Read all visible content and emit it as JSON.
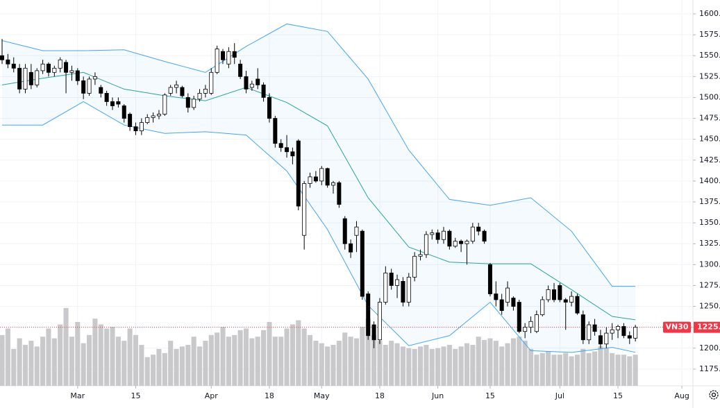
{
  "chart_data": {
    "type": "candlestick",
    "symbol": "VN30",
    "last_price": {
      "value": 1225,
      "label": "1225."
    },
    "candles": [
      [
        1550,
        1570,
        1540,
        1545
      ],
      [
        1545,
        1552,
        1535,
        1540
      ],
      [
        1540,
        1548,
        1530,
        1535
      ],
      [
        1535,
        1540,
        1505,
        1510
      ],
      [
        1510,
        1540,
        1505,
        1535
      ],
      [
        1530,
        1540,
        1510,
        1515
      ],
      [
        1515,
        1535,
        1512,
        1532
      ],
      [
        1532,
        1545,
        1528,
        1540
      ],
      [
        1540,
        1542,
        1525,
        1530
      ],
      [
        1530,
        1538,
        1525,
        1535
      ],
      [
        1535,
        1548,
        1530,
        1545
      ],
      [
        1542,
        1545,
        1505,
        1530
      ],
      [
        1530,
        1538,
        1520,
        1532
      ],
      [
        1532,
        1535,
        1515,
        1520
      ],
      [
        1520,
        1525,
        1498,
        1505
      ],
      [
        1505,
        1525,
        1502,
        1522
      ],
      [
        1522,
        1530,
        1515,
        1525
      ],
      [
        1512,
        1515,
        1500,
        1505
      ],
      [
        1505,
        1508,
        1490,
        1495
      ],
      [
        1495,
        1500,
        1485,
        1490
      ],
      [
        1495,
        1500,
        1488,
        1492
      ],
      [
        1490,
        1492,
        1470,
        1475
      ],
      [
        1480,
        1482,
        1460,
        1465
      ],
      [
        1465,
        1470,
        1455,
        1460
      ],
      [
        1460,
        1475,
        1455,
        1470
      ],
      [
        1470,
        1480,
        1468,
        1476
      ],
      [
        1476,
        1482,
        1470,
        1478
      ],
      [
        1478,
        1485,
        1474,
        1480
      ],
      [
        1480,
        1505,
        1478,
        1503
      ],
      [
        1505,
        1515,
        1502,
        1512
      ],
      [
        1512,
        1520,
        1505,
        1515
      ],
      [
        1512,
        1514,
        1500,
        1502
      ],
      [
        1500,
        1505,
        1482,
        1488
      ],
      [
        1488,
        1502,
        1485,
        1498
      ],
      [
        1498,
        1510,
        1495,
        1505
      ],
      [
        1505,
        1515,
        1500,
        1510
      ],
      [
        1505,
        1535,
        1503,
        1530
      ],
      [
        1530,
        1562,
        1528,
        1558
      ],
      [
        1555,
        1558,
        1540,
        1545
      ],
      [
        1540,
        1560,
        1535,
        1555
      ],
      [
        1555,
        1565,
        1540,
        1548
      ],
      [
        1540,
        1545,
        1522,
        1525
      ],
      [
        1525,
        1532,
        1505,
        1510
      ],
      [
        1512,
        1520,
        1508,
        1516
      ],
      [
        1522,
        1535,
        1510,
        1515
      ],
      [
        1515,
        1518,
        1495,
        1500
      ],
      [
        1500,
        1505,
        1470,
        1475
      ],
      [
        1475,
        1478,
        1440,
        1445
      ],
      [
        1445,
        1450,
        1435,
        1440
      ],
      [
        1440,
        1455,
        1428,
        1435
      ],
      [
        1435,
        1440,
        1420,
        1430
      ],
      [
        1448,
        1450,
        1365,
        1370
      ],
      [
        1335,
        1400,
        1318,
        1397
      ],
      [
        1397,
        1410,
        1392,
        1405
      ],
      [
        1405,
        1412,
        1398,
        1400
      ],
      [
        1400,
        1418,
        1395,
        1415
      ],
      [
        1415,
        1416,
        1392,
        1395
      ],
      [
        1395,
        1400,
        1385,
        1398
      ],
      [
        1398,
        1400,
        1368,
        1372
      ],
      [
        1355,
        1358,
        1318,
        1325
      ],
      [
        1325,
        1330,
        1308,
        1315
      ],
      [
        1335,
        1352,
        1315,
        1345
      ],
      [
        1340,
        1342,
        1258,
        1262
      ],
      [
        1265,
        1268,
        1210,
        1215
      ],
      [
        1228,
        1232,
        1200,
        1210
      ],
      [
        1210,
        1260,
        1205,
        1255
      ],
      [
        1255,
        1298,
        1252,
        1290
      ],
      [
        1290,
        1295,
        1270,
        1275
      ],
      [
        1275,
        1288,
        1260,
        1282
      ],
      [
        1280,
        1285,
        1250,
        1255
      ],
      [
        1255,
        1290,
        1250,
        1285
      ],
      [
        1285,
        1315,
        1280,
        1310
      ],
      [
        1310,
        1318,
        1305,
        1312
      ],
      [
        1312,
        1340,
        1308,
        1336
      ],
      [
        1336,
        1342,
        1330,
        1338
      ],
      [
        1338,
        1342,
        1325,
        1330
      ],
      [
        1330,
        1345,
        1325,
        1340
      ],
      [
        1340,
        1342,
        1318,
        1322
      ],
      [
        1322,
        1332,
        1320,
        1328
      ],
      [
        1328,
        1330,
        1315,
        1325
      ],
      [
        1325,
        1330,
        1300,
        1328
      ],
      [
        1328,
        1350,
        1325,
        1345
      ],
      [
        1345,
        1350,
        1335,
        1340
      ],
      [
        1340,
        1342,
        1325,
        1328
      ],
      [
        1300,
        1302,
        1262,
        1265
      ],
      [
        1265,
        1280,
        1250,
        1258
      ],
      [
        1258,
        1265,
        1240,
        1245
      ],
      [
        1255,
        1280,
        1250,
        1272
      ],
      [
        1260,
        1262,
        1245,
        1250
      ],
      [
        1255,
        1258,
        1218,
        1220
      ],
      [
        1220,
        1230,
        1212,
        1225
      ],
      [
        1225,
        1238,
        1218,
        1232
      ],
      [
        1220,
        1245,
        1218,
        1240
      ],
      [
        1240,
        1262,
        1238,
        1258
      ],
      [
        1258,
        1275,
        1255,
        1270
      ],
      [
        1270,
        1278,
        1255,
        1258
      ],
      [
        1275,
        1278,
        1255,
        1258
      ],
      [
        1258,
        1260,
        1222,
        1255
      ],
      [
        1255,
        1268,
        1250,
        1262
      ],
      [
        1262,
        1265,
        1240,
        1242
      ],
      [
        1240,
        1245,
        1205,
        1210
      ],
      [
        1210,
        1232,
        1205,
        1228
      ],
      [
        1228,
        1235,
        1215,
        1220
      ],
      [
        1215,
        1222,
        1200,
        1205
      ],
      [
        1205,
        1225,
        1200,
        1218
      ],
      [
        1218,
        1230,
        1210,
        1222
      ],
      [
        1222,
        1228,
        1212,
        1226
      ],
      [
        1226,
        1230,
        1212,
        1215
      ],
      [
        1215,
        1220,
        1205,
        1212
      ],
      [
        1212,
        1228,
        1208,
        1225
      ]
    ],
    "volume": [
      62,
      70,
      45,
      58,
      50,
      55,
      48,
      60,
      70,
      58,
      75,
      95,
      60,
      78,
      52,
      62,
      82,
      75,
      70,
      72,
      60,
      55,
      70,
      62,
      50,
      35,
      38,
      45,
      40,
      55,
      45,
      48,
      50,
      60,
      48,
      55,
      62,
      65,
      72,
      60,
      62,
      68,
      70,
      58,
      60,
      68,
      78,
      60,
      60,
      70,
      75,
      80,
      70,
      62,
      55,
      52,
      48,
      50,
      55,
      65,
      60,
      58,
      72,
      82,
      62,
      55,
      50,
      55,
      52,
      48,
      46,
      45,
      48,
      50,
      45,
      46,
      48,
      50,
      45,
      48,
      52,
      50,
      60,
      56,
      58,
      55,
      48,
      52,
      58,
      60,
      55,
      45,
      38,
      40,
      42,
      38,
      38,
      40,
      36,
      38,
      45,
      40,
      42,
      48,
      46,
      40,
      38,
      38,
      36,
      38
    ],
    "volume_ylim": [
      0,
      100
    ],
    "bands": [
      {
        "color": "#42a5f5",
        "x": [
          0,
          7,
          14,
          21,
          28,
          35,
          42,
          49,
          56,
          63,
          70,
          77,
          84,
          91,
          98,
          105,
          109
        ],
        "values": [
          1568,
          1556,
          1556,
          1557,
          1543,
          1530,
          1561,
          1588,
          1579,
          1522,
          1437,
          1378,
          1371,
          1380,
          1340,
          1274,
          1274
        ]
      },
      {
        "color": "#26a69a",
        "x": [
          0,
          7,
          14,
          21,
          28,
          35,
          42,
          49,
          56,
          63,
          70,
          77,
          84,
          91,
          98,
          105,
          109
        ],
        "values": [
          1515,
          1523,
          1530,
          1510,
          1502,
          1496,
          1512,
          1494,
          1466,
          1380,
          1321,
          1303,
          1301,
          1301,
          1270,
          1238,
          1234
        ]
      },
      {
        "color": "#42a5f5",
        "x": [
          0,
          7,
          14,
          21,
          28,
          35,
          42,
          49,
          56,
          63,
          70,
          77,
          84,
          91,
          98,
          105,
          109
        ],
        "values": [
          1467,
          1467,
          1495,
          1467,
          1457,
          1459,
          1455,
          1412,
          1342,
          1251,
          1203,
          1215,
          1255,
          1197,
          1195,
          1201,
          1195
        ]
      }
    ],
    "xlim": [
      -0.36,
      118.9
    ],
    "xticks": [
      {
        "value": 13,
        "label": "Mar"
      },
      {
        "value": 23,
        "label": "15"
      },
      {
        "value": 36,
        "label": "Apr"
      },
      {
        "value": 46,
        "label": "18"
      },
      {
        "value": 55,
        "label": "May"
      },
      {
        "value": 65,
        "label": "18"
      },
      {
        "value": 75,
        "label": "Jun"
      },
      {
        "value": 84,
        "label": "15"
      },
      {
        "value": 96,
        "label": "Jul"
      },
      {
        "value": 106,
        "label": "15"
      },
      {
        "value": 117,
        "label": "Aug"
      }
    ],
    "ylim": [
      1155,
      1616.6
    ],
    "yticks": [
      {
        "value": 1175,
        "label": "1175.0"
      },
      {
        "value": 1200,
        "label": "1200.0"
      },
      {
        "value": 1225,
        "label": "1225.0"
      },
      {
        "value": 1250,
        "label": "1250.0"
      },
      {
        "value": 1275,
        "label": "1275.0"
      },
      {
        "value": 1300,
        "label": "1300.0"
      },
      {
        "value": 1325,
        "label": "1325.0"
      },
      {
        "value": 1350,
        "label": "1350.0"
      },
      {
        "value": 1375,
        "label": "1375.0"
      },
      {
        "value": 1400,
        "label": "1400.0"
      },
      {
        "value": 1425,
        "label": "1425.0"
      },
      {
        "value": 1450,
        "label": "1450.0"
      },
      {
        "value": 1475,
        "label": "1475.0"
      },
      {
        "value": 1500,
        "label": "1500.0"
      },
      {
        "value": 1525,
        "label": "1525.0"
      },
      {
        "value": 1550,
        "label": "1550.0"
      },
      {
        "value": 1575,
        "label": "1575.0"
      },
      {
        "value": 1600,
        "label": "1600.0"
      }
    ],
    "grid": true,
    "up_color": "#ffffff",
    "down_color": "#000000",
    "volume_color": "#c9c9cc",
    "last_price_color": "#f23645"
  }
}
